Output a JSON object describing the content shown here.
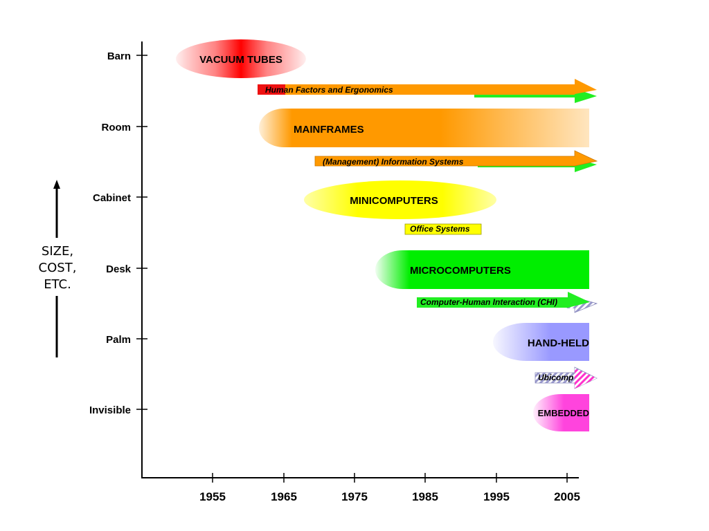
{
  "size_axis": {
    "ticks": [
      "Barn",
      "Room",
      "Cabinet",
      "Desk",
      "Palm",
      "Invisible"
    ],
    "label_lines": [
      "SIZE,",
      "COST,",
      "ETC."
    ]
  },
  "time_axis": {
    "ticks": [
      "1955",
      "1965",
      "1975",
      "1985",
      "1995",
      "2005"
    ]
  },
  "eras": {
    "vacuum_tubes": "VACUUM TUBES",
    "mainframes": "MAINFRAMES",
    "minicomputers": "MINICOMPUTERS",
    "microcomputers": "MICROCOMPUTERS",
    "hand_held": "HAND-HELD",
    "embedded": "EMBEDDED"
  },
  "bands": {
    "human_factors": "Human Factors and Ergonomics",
    "information_systems": "(Management) Information Systems",
    "office_systems": "Office Systems",
    "chi": "Computer-Human Interaction (CHI)",
    "ubicomp": "Ubicomp"
  },
  "colors": {
    "vacuum": "#ff0000",
    "mainframe": "#ff9900",
    "mini": "#ffff00",
    "micro": "#00ee00",
    "handheld": "#9999ff",
    "embedded": "#ff44dd"
  }
}
